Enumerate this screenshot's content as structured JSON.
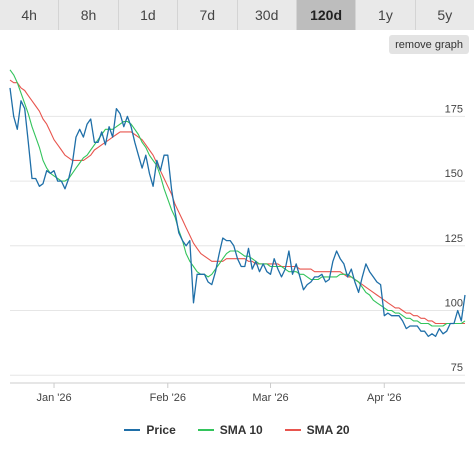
{
  "tabs": [
    {
      "label": "4h",
      "active": false
    },
    {
      "label": "8h",
      "active": false
    },
    {
      "label": "1d",
      "active": false
    },
    {
      "label": "7d",
      "active": false
    },
    {
      "label": "30d",
      "active": false
    },
    {
      "label": "120d",
      "active": true
    },
    {
      "label": "1y",
      "active": false
    },
    {
      "label": "5y",
      "active": false
    }
  ],
  "remove_graph_label": "remove graph",
  "chart_data": {
    "type": "line",
    "title": "",
    "xlabel": "",
    "ylabel": "",
    "x_ticks": [
      {
        "label": "Jan '26",
        "index": 12
      },
      {
        "label": "Feb '26",
        "index": 43
      },
      {
        "label": "Mar '26",
        "index": 71
      },
      {
        "label": "Apr '26",
        "index": 102
      }
    ],
    "y_ticks": [
      75,
      100,
      125,
      150,
      175
    ],
    "ylim": [
      72,
      196
    ],
    "grid": true,
    "legend_position": "bottom",
    "series": [
      {
        "name": "Price",
        "color": "#1f6fa8",
        "values": [
          186,
          175,
          170,
          181,
          178,
          165,
          151,
          151,
          148,
          149,
          154,
          153,
          154,
          150,
          150,
          147,
          151,
          157,
          167,
          170,
          167,
          172,
          174,
          165,
          165,
          169,
          164,
          171,
          167,
          178,
          176,
          171,
          175,
          171,
          165,
          160,
          155,
          160,
          153,
          148,
          158,
          154,
          160,
          160,
          147,
          138,
          130,
          127,
          125,
          127,
          103,
          114,
          114,
          114,
          111,
          110,
          115,
          122,
          128,
          127,
          127,
          125,
          120,
          117,
          117,
          124,
          116,
          119,
          115,
          118,
          115,
          114,
          120,
          116,
          113,
          116,
          123,
          114,
          118,
          113,
          108,
          110,
          111,
          113,
          113,
          114,
          111,
          112,
          119,
          123,
          120,
          118,
          113,
          116,
          111,
          107,
          113,
          118,
          115,
          113,
          111,
          110,
          98,
          99,
          98,
          98,
          98,
          96,
          93,
          94,
          94,
          94,
          92,
          92,
          90,
          91,
          90,
          93,
          91,
          92,
          95,
          95,
          100,
          96,
          106
        ]
      },
      {
        "name": "SMA 10",
        "color": "#33c45c",
        "values": [
          193,
          191,
          188,
          184,
          180,
          176,
          171,
          167,
          163,
          158,
          155,
          153,
          152,
          151,
          150,
          150,
          151,
          153,
          155,
          157,
          159,
          160,
          162,
          164,
          166,
          168,
          170,
          170,
          170,
          171,
          172,
          173,
          173,
          172,
          170,
          168,
          165,
          163,
          160,
          158,
          156,
          152,
          147,
          143,
          139,
          136,
          131,
          127,
          122,
          119,
          117,
          115,
          114,
          114,
          113,
          114,
          116,
          118,
          120,
          122,
          123,
          123,
          123,
          122,
          121,
          121,
          120,
          119,
          118,
          118,
          118,
          117,
          117,
          117,
          117,
          116,
          115,
          115,
          115,
          114,
          114,
          113,
          112,
          112,
          112,
          113,
          113,
          113,
          113,
          113,
          114,
          114,
          114,
          113,
          112,
          111,
          109,
          107,
          106,
          104,
          103,
          102,
          101,
          100,
          100,
          99,
          99,
          98,
          97,
          97,
          96,
          96,
          95,
          95,
          95,
          94,
          94,
          94,
          94,
          95,
          95,
          95,
          95,
          95,
          96
        ]
      },
      {
        "name": "SMA 20",
        "color": "#e8554e",
        "values": [
          189,
          188,
          188,
          186,
          185,
          183,
          181,
          179,
          177,
          174,
          172,
          169,
          166,
          164,
          162,
          160,
          159,
          158,
          158,
          158,
          158,
          159,
          160,
          162,
          163,
          164,
          165,
          166,
          167,
          168,
          169,
          169,
          169,
          169,
          168,
          167,
          166,
          164,
          162,
          160,
          157,
          154,
          151,
          148,
          145,
          141,
          138,
          135,
          132,
          129,
          126,
          124,
          122,
          121,
          120,
          119,
          119,
          119,
          119,
          120,
          120,
          120,
          120,
          120,
          120,
          119,
          119,
          118,
          118,
          118,
          118,
          118,
          118,
          118,
          117,
          117,
          117,
          117,
          117,
          116,
          116,
          116,
          116,
          115,
          115,
          115,
          115,
          115,
          115,
          115,
          115,
          114,
          113,
          113,
          112,
          111,
          110,
          109,
          108,
          107,
          106,
          105,
          104,
          103,
          102,
          101,
          101,
          100,
          99,
          99,
          98,
          98,
          97,
          97,
          96,
          96,
          95,
          95,
          95,
          95,
          95,
          95,
          95,
          95,
          95
        ]
      }
    ]
  }
}
